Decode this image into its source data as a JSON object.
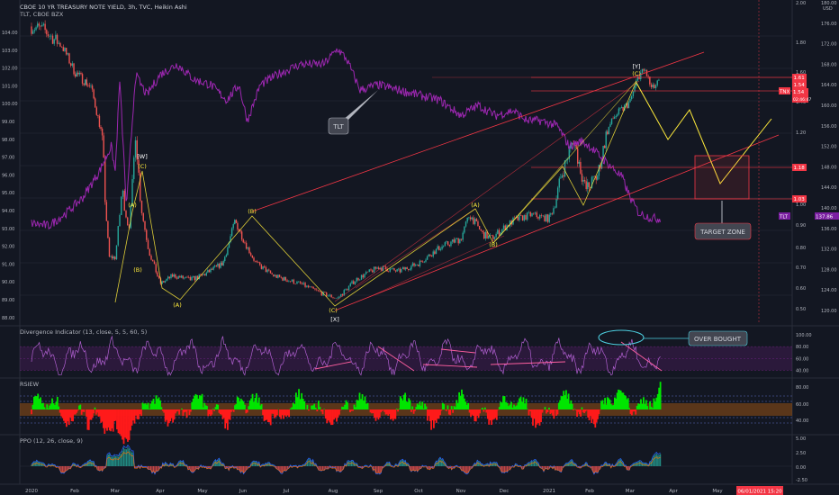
{
  "header": {
    "symbol_line": "CBOE 10 YR TREASURY NOTE YIELD, 3h, TVC, Heikin Ashi",
    "compare_line": "TLT, CBOE BZX"
  },
  "indicators": {
    "divergence": "Divergence Indicator (13, close, 5, 5, 60, 5)",
    "rsiew": "RSIEW",
    "ppo": "PPO (12, 26, close, 9)"
  },
  "annotations": {
    "tlt_callout": "TLT",
    "target_zone": "TARGET ZONE",
    "over_bought": "OVER BOUGHT",
    "w": "[W]",
    "x": "[X]",
    "y": "[Y]",
    "A": "(A)",
    "B": "(B)",
    "C": "(C)"
  },
  "badges": {
    "tnx_symbol": "TNX",
    "tnx_value": "1.54",
    "tnx_countdown": "02:46:47",
    "tlt_symbol": "TLT",
    "tlt_value": "137.86",
    "usd_label": "USD",
    "level_161": "1.61",
    "level_154": "1.54",
    "level_118": "1.18",
    "level_103": "1.03"
  },
  "date_badge": "06/01/2021 15:20",
  "colors": {
    "bg": "#131722",
    "bull": "#26a69a",
    "bear": "#ef5350",
    "tlt": "#9c27b0",
    "wave": "#ffeb3b",
    "channel": "#f23645",
    "green_fill": "#00e600",
    "red_fill": "#ff1a1a"
  },
  "chart_data": [
    {
      "type": "line",
      "name": "main",
      "x": [
        "2020-01",
        "2020-02",
        "2020-03",
        "2020-04",
        "2020-05",
        "2020-06",
        "2020-07",
        "2020-08",
        "2020-09",
        "2020-10",
        "2020-11",
        "2020-12",
        "2021-01",
        "2021-02",
        "2021-03"
      ],
      "series": [
        {
          "name": "TNX",
          "values": [
            1.85,
            1.55,
            0.95,
            0.63,
            0.66,
            0.72,
            0.62,
            0.55,
            0.68,
            0.78,
            0.87,
            0.93,
            1.08,
            1.28,
            1.54
          ]
        },
        {
          "name": "TLT",
          "values": [
            137,
            142,
            166,
            166,
            161,
            161,
            167,
            170,
            163,
            163,
            158,
            157,
            153,
            146,
            137.86
          ]
        }
      ],
      "left_axis_ticks": [
        "104.00",
        "103.00",
        "102.00",
        "101.00",
        "100.00",
        "99.00",
        "98.00",
        "97.00",
        "96.00",
        "95.00",
        "94.00",
        "93.00",
        "92.00",
        "91.00",
        "90.00",
        "89.00",
        "88.00"
      ],
      "right_axis_ticks_yield": [
        "2.00",
        "1.80",
        "1.60",
        "1.40",
        "1.20",
        "1.00",
        "0.90",
        "0.80",
        "0.70",
        "0.60",
        "0.50"
      ],
      "right_axis_ticks_tlt": [
        "180.00",
        "176.00",
        "172.00",
        "168.00",
        "164.00",
        "160.00",
        "156.00",
        "152.00",
        "148.00",
        "144.00",
        "140.00",
        "136.00",
        "132.00",
        "128.00",
        "124.00",
        "120.00"
      ],
      "x_ticks": [
        "2020",
        "Feb",
        "Mar",
        "Apr",
        "May",
        "Jun",
        "Jul",
        "Aug",
        "Sep",
        "Oct",
        "Nov",
        "Dec",
        "2021",
        "Feb",
        "Mar",
        "Apr",
        "May",
        "Jun"
      ],
      "projection": [
        1.61,
        1.35,
        1.52,
        1.05,
        1.42
      ]
    },
    {
      "type": "line",
      "name": "divergence",
      "ticks": [
        "100.00",
        "80.00",
        "60.00",
        "40.00"
      ]
    },
    {
      "type": "area",
      "name": "rsiew",
      "ticks": [
        "80.00",
        "60.00",
        "40.00"
      ]
    },
    {
      "type": "line",
      "name": "ppo",
      "ticks": [
        "5.00",
        "2.50",
        "0.00",
        "-2.50"
      ]
    }
  ]
}
